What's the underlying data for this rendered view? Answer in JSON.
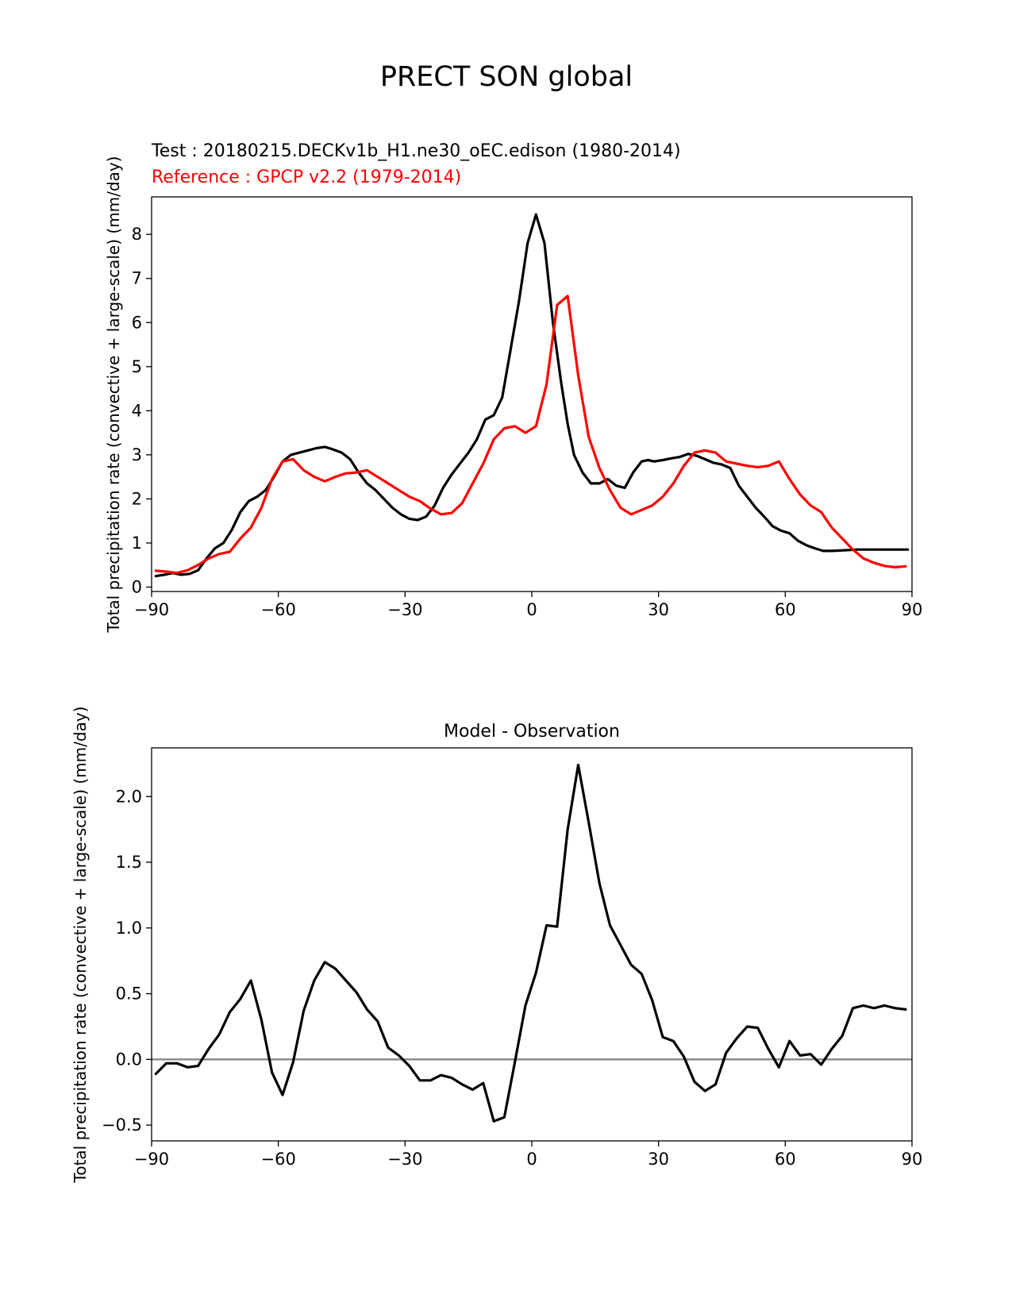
{
  "figure": {
    "title": "PRECT SON global"
  },
  "chart_data": [
    {
      "type": "line",
      "test_label": "Test : 20180215.DECKv1b_H1.ne30_oEC.edison (1980-2014)",
      "reference_label": "Reference : GPCP v2.2 (1979-2014)",
      "xlabel": "",
      "ylabel": "Total precipitation rate (convective + large-scale) (mm/day)",
      "xlim": [
        -90,
        90
      ],
      "ylim": [
        -0.1,
        8.85
      ],
      "xticks": [
        -90,
        -60,
        -30,
        0,
        30,
        60,
        90
      ],
      "xtick_labels": [
        "−90",
        "−60",
        "−30",
        "0",
        "30",
        "60",
        "90"
      ],
      "yticks": [
        0,
        1,
        2,
        3,
        4,
        5,
        6,
        7,
        8
      ],
      "ytick_labels": [
        "0",
        "1",
        "2",
        "3",
        "4",
        "5",
        "6",
        "7",
        "8"
      ],
      "series": [
        {
          "name": "Test",
          "color": "#000000",
          "x": [
            -89,
            -87,
            -85,
            -83,
            -81,
            -79,
            -77,
            -75,
            -73,
            -71,
            -69,
            -67,
            -65,
            -63,
            -61,
            -59,
            -57,
            -55,
            -53,
            -51,
            -49,
            -47,
            -45,
            -43,
            -41,
            -39,
            -37,
            -35,
            -33,
            -31,
            -29,
            -27,
            -25,
            -23,
            -21,
            -19,
            -17,
            -15,
            -13,
            -11,
            -9,
            -7,
            -5,
            -3,
            -1,
            1,
            3,
            5,
            7,
            8.5,
            10,
            12,
            14,
            16,
            18,
            20,
            22,
            24,
            26,
            27.5,
            29,
            31,
            33,
            35,
            37,
            39,
            41,
            43,
            45,
            47,
            49,
            51,
            53,
            55,
            57,
            59,
            61,
            63,
            65,
            67,
            69,
            71,
            73,
            75,
            77,
            79,
            81,
            83,
            85,
            87,
            89
          ],
          "values": [
            0.25,
            0.28,
            0.32,
            0.28,
            0.3,
            0.38,
            0.65,
            0.88,
            1.0,
            1.3,
            1.7,
            1.95,
            2.05,
            2.2,
            2.5,
            2.85,
            3.0,
            3.05,
            3.1,
            3.15,
            3.18,
            3.12,
            3.05,
            2.9,
            2.6,
            2.35,
            2.2,
            2.0,
            1.8,
            1.65,
            1.55,
            1.52,
            1.6,
            1.85,
            2.25,
            2.55,
            2.8,
            3.05,
            3.35,
            3.8,
            3.9,
            4.3,
            5.4,
            6.5,
            7.8,
            8.45,
            7.8,
            6.0,
            4.6,
            3.7,
            3.0,
            2.6,
            2.35,
            2.35,
            2.45,
            2.3,
            2.25,
            2.6,
            2.85,
            2.88,
            2.85,
            2.88,
            2.92,
            2.95,
            3.02,
            2.98,
            2.9,
            2.82,
            2.78,
            2.7,
            2.3,
            2.05,
            1.8,
            1.6,
            1.38,
            1.28,
            1.22,
            1.05,
            0.95,
            0.88,
            0.82,
            0.82,
            0.83,
            0.84,
            0.85,
            0.85,
            0.85,
            0.85,
            0.85,
            0.85,
            0.85
          ]
        },
        {
          "name": "Reference",
          "color": "#ff0000",
          "x": [
            -89,
            -86.5,
            -84,
            -81.5,
            -79,
            -76.5,
            -74,
            -71.5,
            -69,
            -66.5,
            -64,
            -61.5,
            -59,
            -56.5,
            -54,
            -51.5,
            -49,
            -46.5,
            -44,
            -41.5,
            -39,
            -36.5,
            -34,
            -31.5,
            -29,
            -26.5,
            -24,
            -21.5,
            -19,
            -16.5,
            -14,
            -11.5,
            -9,
            -6.5,
            -4,
            -1.5,
            1,
            3.5,
            6,
            8.5,
            11,
            13.5,
            16,
            18.5,
            21,
            23.5,
            26,
            28.5,
            31,
            33.5,
            36,
            38.5,
            41,
            43.5,
            46,
            48.5,
            51,
            53.5,
            56,
            58.5,
            61,
            63.5,
            66,
            68.5,
            71,
            73.5,
            76,
            78.5,
            81,
            83.5,
            86,
            88.5
          ],
          "values": [
            0.37,
            0.35,
            0.32,
            0.38,
            0.5,
            0.65,
            0.75,
            0.8,
            1.1,
            1.35,
            1.8,
            2.45,
            2.85,
            2.9,
            2.65,
            2.5,
            2.4,
            2.5,
            2.58,
            2.6,
            2.65,
            2.5,
            2.35,
            2.2,
            2.05,
            1.95,
            1.78,
            1.65,
            1.68,
            1.9,
            2.35,
            2.8,
            3.35,
            3.6,
            3.65,
            3.5,
            3.65,
            4.6,
            6.4,
            6.6,
            4.8,
            3.4,
            2.7,
            2.2,
            1.8,
            1.65,
            1.75,
            1.85,
            2.05,
            2.35,
            2.75,
            3.05,
            3.1,
            3.05,
            2.85,
            2.8,
            2.75,
            2.72,
            2.75,
            2.85,
            2.45,
            2.1,
            1.85,
            1.7,
            1.35,
            1.1,
            0.85,
            0.65,
            0.55,
            0.48,
            0.45,
            0.47
          ]
        }
      ]
    },
    {
      "type": "line",
      "title": "Model - Observation",
      "xlabel": "",
      "ylabel": "Total precipitation rate (convective + large-scale) (mm/day)",
      "xlim": [
        -90,
        90
      ],
      "ylim": [
        -0.62,
        2.37
      ],
      "xticks": [
        -90,
        -60,
        -30,
        0,
        30,
        60,
        90
      ],
      "xtick_labels": [
        "−90",
        "−60",
        "−30",
        "0",
        "30",
        "60",
        "90"
      ],
      "yticks": [
        -0.5,
        0.0,
        0.5,
        1.0,
        1.5,
        2.0
      ],
      "ytick_labels": [
        "−0.5",
        "0.0",
        "0.5",
        "1.0",
        "1.5",
        "2.0"
      ],
      "zero_line": true,
      "series": [
        {
          "name": "Difference",
          "color": "#000000",
          "x": [
            -89,
            -86.5,
            -84,
            -81.5,
            -79,
            -76.5,
            -74,
            -71.5,
            -69,
            -66.5,
            -64,
            -61.5,
            -59,
            -56.5,
            -54,
            -51.5,
            -49,
            -46.5,
            -44,
            -41.5,
            -39,
            -36.5,
            -34,
            -31.5,
            -29,
            -26.5,
            -24,
            -21.5,
            -19,
            -16.5,
            -14,
            -11.5,
            -9,
            -6.5,
            -4,
            -1.5,
            1,
            3.5,
            6,
            8.5,
            11,
            13.5,
            16,
            18.5,
            21,
            23.5,
            26,
            28.5,
            31,
            33.5,
            36,
            38.5,
            41,
            43.5,
            46,
            48.5,
            51,
            53.5,
            56,
            58.5,
            61,
            63.5,
            66,
            68.5,
            71,
            73.5,
            76,
            78.5,
            81,
            83.5,
            86,
            88.5
          ],
          "values": [
            -0.11,
            -0.03,
            -0.03,
            -0.06,
            -0.05,
            0.08,
            0.19,
            0.36,
            0.46,
            0.6,
            0.3,
            -0.1,
            -0.27,
            -0.02,
            0.37,
            0.6,
            0.74,
            0.69,
            0.6,
            0.51,
            0.38,
            0.29,
            0.09,
            0.03,
            -0.05,
            -0.16,
            -0.16,
            -0.12,
            -0.14,
            -0.19,
            -0.23,
            -0.18,
            -0.47,
            -0.44,
            -0.02,
            0.41,
            0.66,
            1.02,
            1.01,
            1.75,
            2.24,
            1.8,
            1.34,
            1.02,
            0.87,
            0.72,
            0.65,
            0.45,
            0.17,
            0.14,
            0.02,
            -0.17,
            -0.24,
            -0.19,
            0.05,
            0.16,
            0.25,
            0.24,
            0.08,
            -0.06,
            0.14,
            0.03,
            0.04,
            -0.04,
            0.08,
            0.18,
            0.39,
            0.41,
            0.39,
            0.41,
            0.39,
            0.38
          ]
        }
      ]
    }
  ]
}
